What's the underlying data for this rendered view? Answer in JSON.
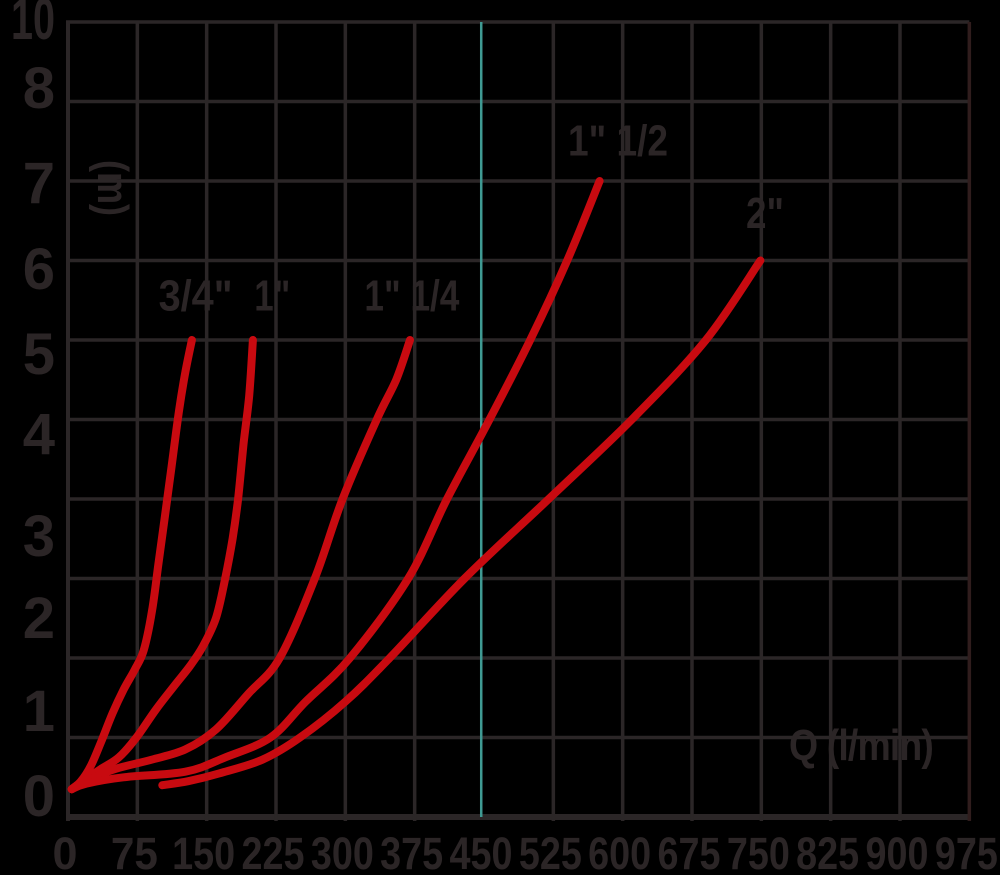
{
  "page": {
    "background": "#000000"
  },
  "chart_data": {
    "type": "line",
    "xlabel": "Q (l/min)",
    "ylabel": "(m)",
    "x_range": [
      0,
      975
    ],
    "x_step": 75,
    "y_range": [
      0,
      10
    ],
    "y_step": 1,
    "grid": true,
    "legend_position": "none",
    "xtick_values": [
      0,
      75,
      150,
      225,
      300,
      375,
      450,
      525,
      600,
      675,
      750,
      825,
      900,
      975
    ],
    "ytick_labels_top_to_bottom": [
      "10",
      "8",
      "7",
      "6",
      "5",
      "4",
      "3",
      "2",
      "1",
      "0"
    ],
    "marker_line": {
      "q": 447,
      "replaces_tick": 450,
      "color": "#3f9a93"
    },
    "colors": {
      "curve": "#c80a10",
      "grid": "#2b2627",
      "text": "#2b2526",
      "background": "#000000",
      "right_border": "#301d1d"
    },
    "series": [
      {
        "name": "3/4\"",
        "label": "3/4\"",
        "label_at": [
          138,
          6.57
        ],
        "points": [
          [
            4,
            0.35
          ],
          [
            14,
            0.45
          ],
          [
            25,
            0.65
          ],
          [
            36,
            0.95
          ],
          [
            48,
            1.3
          ],
          [
            60,
            1.6
          ],
          [
            72,
            1.85
          ],
          [
            82,
            2.1
          ],
          [
            91,
            2.6
          ],
          [
            98,
            3.2
          ],
          [
            105,
            3.8
          ],
          [
            112,
            4.4
          ],
          [
            120,
            5.1
          ],
          [
            127,
            5.6
          ],
          [
            134,
            6.0
          ]
        ]
      },
      {
        "name": "1\"",
        "label": "1\"",
        "label_at": [
          221,
          6.57
        ],
        "points": [
          [
            4,
            0.35
          ],
          [
            16,
            0.45
          ],
          [
            35,
            0.6
          ],
          [
            55,
            0.75
          ],
          [
            74,
            1.0
          ],
          [
            95,
            1.35
          ],
          [
            115,
            1.65
          ],
          [
            132,
            1.9
          ],
          [
            146,
            2.15
          ],
          [
            160,
            2.5
          ],
          [
            170,
            3.0
          ],
          [
            178,
            3.5
          ],
          [
            184,
            4.0
          ],
          [
            190,
            4.7
          ],
          [
            196,
            5.3
          ],
          [
            200,
            6.0
          ]
        ]
      },
      {
        "name": "1\" 1/4",
        "label": "1\" 1/4",
        "label_at": [
          372,
          6.57
        ],
        "points": [
          [
            4,
            0.35
          ],
          [
            20,
            0.45
          ],
          [
            50,
            0.6
          ],
          [
            90,
            0.72
          ],
          [
            127,
            0.85
          ],
          [
            160,
            1.1
          ],
          [
            195,
            1.55
          ],
          [
            229,
            2.0
          ],
          [
            267,
            3.0
          ],
          [
            297,
            4.0
          ],
          [
            334,
            5.0
          ],
          [
            355,
            5.5
          ],
          [
            370,
            6.0
          ]
        ]
      },
      {
        "name": "1\" 1/2",
        "label": "1\" 1/2",
        "label_at": [
          595,
          8.52
        ],
        "points": [
          [
            4,
            0.35
          ],
          [
            20,
            0.42
          ],
          [
            60,
            0.5
          ],
          [
            127,
            0.57
          ],
          [
            170,
            0.75
          ],
          [
            219,
            1.0
          ],
          [
            257,
            1.45
          ],
          [
            305,
            2.0
          ],
          [
            368,
            3.0
          ],
          [
            410,
            4.0
          ],
          [
            456,
            5.0
          ],
          [
            500,
            6.0
          ],
          [
            540,
            7.0
          ],
          [
            575,
            8.0
          ]
        ]
      },
      {
        "name": "2\"",
        "label": "2\"",
        "label_at": [
          754,
          7.61
        ],
        "points": [
          [
            102,
            0.4
          ],
          [
            130,
            0.45
          ],
          [
            164,
            0.55
          ],
          [
            210,
            0.72
          ],
          [
            251,
            1.0
          ],
          [
            300,
            1.45
          ],
          [
            348,
            2.0
          ],
          [
            429,
            3.0
          ],
          [
            520,
            4.0
          ],
          [
            610,
            5.0
          ],
          [
            690,
            6.0
          ],
          [
            749,
            7.0
          ]
        ]
      }
    ]
  }
}
